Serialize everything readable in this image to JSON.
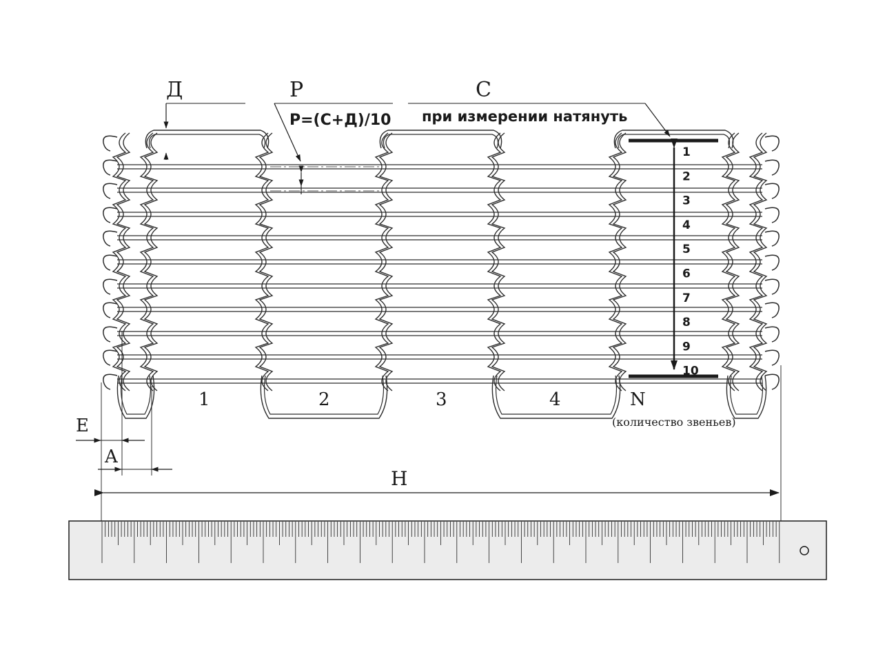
{
  "labels": {
    "d": "Д",
    "p": "P",
    "c": "C",
    "formula": "P=(C+Д)/10",
    "stretch_note": "при измерении натянуть",
    "e": "E",
    "a": "A",
    "h": "H",
    "n": "N",
    "n_note": "(количество звеньев)"
  },
  "link_numbers": [
    "1",
    "2",
    "3",
    "4"
  ],
  "pitch_numbers": [
    "1",
    "2",
    "3",
    "4",
    "5",
    "6",
    "7",
    "8",
    "9",
    "10"
  ],
  "colors": {
    "ink": "#1a1a1a",
    "wire": "#2b2b2b",
    "ruler_fill": "#ececec"
  }
}
